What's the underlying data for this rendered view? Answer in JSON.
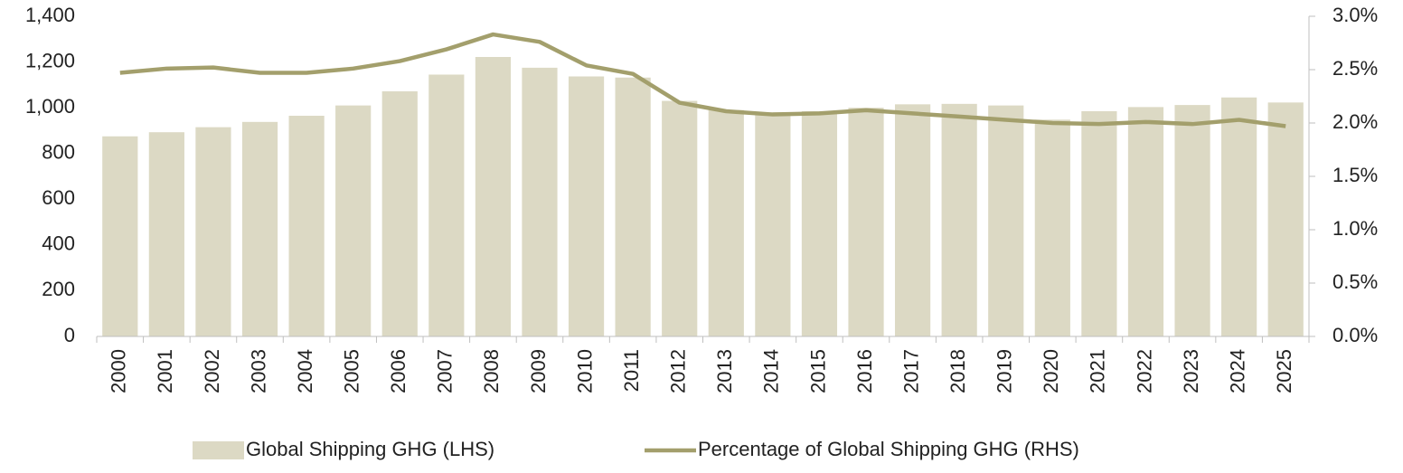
{
  "chart_data": {
    "type": "bar_line",
    "categories": [
      "2000",
      "2001",
      "2002",
      "2003",
      "2004",
      "2005",
      "2006",
      "2007",
      "2008",
      "2009",
      "2010",
      "2011",
      "2012",
      "2013",
      "2014",
      "2015",
      "2016",
      "2017",
      "2018",
      "2019",
      "2020",
      "2021",
      "2022",
      "2023",
      "2024",
      "2025"
    ],
    "series": [
      {
        "name": "Global Shipping GHG (LHS)",
        "type": "bar",
        "color": "#dcd9c4",
        "values": [
          875,
          893,
          915,
          938,
          965,
          1010,
          1072,
          1145,
          1222,
          1175,
          1137,
          1132,
          1030,
          990,
          980,
          985,
          1000,
          1015,
          1017,
          1010,
          948,
          985,
          1003,
          1012,
          1045,
          1023
        ]
      },
      {
        "name": "Percentage of Global Shipping GHG (RHS)",
        "type": "line",
        "axis": "y2",
        "color": "#a39f6c",
        "values": [
          2.47,
          2.51,
          2.52,
          2.47,
          2.47,
          2.51,
          2.58,
          2.69,
          2.83,
          2.76,
          2.54,
          2.46,
          2.19,
          2.11,
          2.08,
          2.09,
          2.12,
          2.09,
          2.06,
          2.03,
          2.0,
          1.99,
          2.01,
          1.99,
          2.03,
          1.97
        ]
      }
    ],
    "ylim": [
      0,
      1400
    ],
    "yticks": [
      0,
      200,
      400,
      600,
      800,
      {
        "value": 1000,
        "label": "1,000"
      },
      {
        "value": 1200,
        "label": "1,200"
      },
      {
        "value": 1400,
        "label": "1,400"
      }
    ],
    "y2lim": [
      0,
      3
    ],
    "y2ticks": [
      {
        "value": 0,
        "label": "0.0%"
      },
      {
        "value": 0.5,
        "label": "0.5%"
      },
      {
        "value": 1,
        "label": "1.0%"
      },
      {
        "value": 1.5,
        "label": "1.5%"
      },
      {
        "value": 2,
        "label": "2.0%"
      },
      {
        "value": 2.5,
        "label": "2.5%"
      },
      {
        "value": 3,
        "label": "3.0%"
      }
    ],
    "legend": "bottom"
  }
}
